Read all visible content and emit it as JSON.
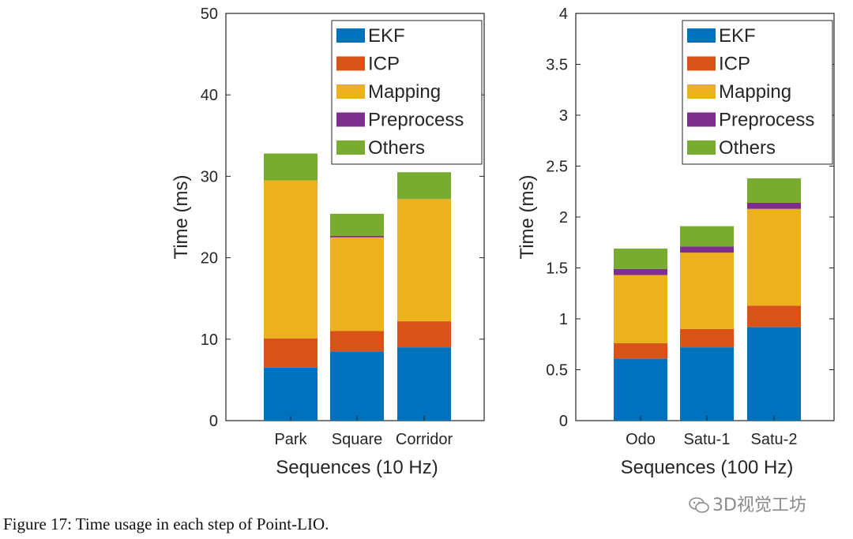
{
  "chart_data": [
    {
      "type": "bar",
      "stacked": true,
      "categories": [
        "Park",
        "Square",
        "Corridor"
      ],
      "series": [
        {
          "name": "EKF",
          "values": [
            6.5,
            8.5,
            9.0
          ]
        },
        {
          "name": "ICP",
          "values": [
            3.6,
            2.5,
            3.2
          ]
        },
        {
          "name": "Mapping",
          "values": [
            19.4,
            11.5,
            15.0
          ]
        },
        {
          "name": "Preprocess",
          "values": [
            0.0,
            0.2,
            0.0
          ]
        },
        {
          "name": "Others",
          "values": [
            3.3,
            2.7,
            3.3
          ]
        }
      ],
      "xlabel": "Sequences (10 Hz)",
      "ylabel": "Time (ms)",
      "ylim": [
        0,
        50
      ],
      "yticks": [
        "0",
        "10",
        "20",
        "30",
        "40",
        "50"
      ],
      "legend_position": "top-right"
    },
    {
      "type": "bar",
      "stacked": true,
      "categories": [
        "Odo",
        "Satu-1",
        "Satu-2"
      ],
      "series": [
        {
          "name": "EKF",
          "values": [
            0.61,
            0.72,
            0.92
          ]
        },
        {
          "name": "ICP",
          "values": [
            0.15,
            0.18,
            0.21
          ]
        },
        {
          "name": "Mapping",
          "values": [
            0.67,
            0.75,
            0.95
          ]
        },
        {
          "name": "Preprocess",
          "values": [
            0.06,
            0.06,
            0.06
          ]
        },
        {
          "name": "Others",
          "values": [
            0.2,
            0.2,
            0.24
          ]
        }
      ],
      "xlabel": "Sequences (100 Hz)",
      "ylabel": "Time (ms)",
      "ylim": [
        0,
        4
      ],
      "yticks": [
        "0",
        "0.5",
        "1",
        "1.5",
        "2",
        "2.5",
        "3",
        "3.5",
        "4"
      ],
      "legend_position": "top-right"
    }
  ],
  "colors": {
    "EKF": "#0072BD",
    "ICP": "#D95319",
    "Mapping": "#EDB120",
    "Preprocess": "#7E2F8E",
    "Others": "#77AC30"
  },
  "caption": "Figure 17: Time usage in each step of Point-LIO.",
  "watermark": "3D视觉工坊"
}
